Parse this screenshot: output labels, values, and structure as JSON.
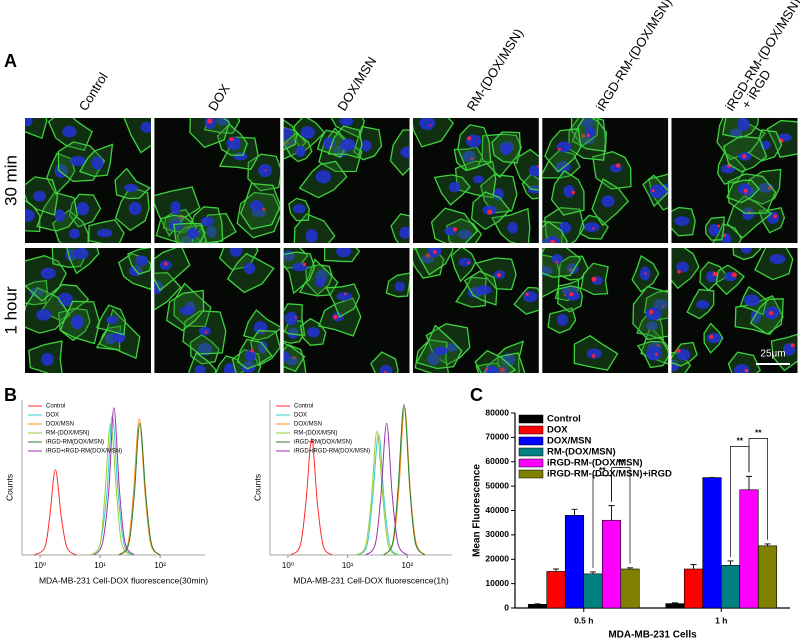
{
  "panel_labels": [
    "A",
    "B",
    "C"
  ],
  "panel_a": {
    "columns": [
      [
        "Control"
      ],
      [
        "DOX"
      ],
      [
        "DOX/MSN"
      ],
      [
        "RM-(DOX/MSN)"
      ],
      [
        "iRGD-RM-(DOX/MSN)"
      ],
      [
        "iRGD-RM-(DOX/MSN)",
        "+ iRGD"
      ]
    ],
    "rows": [
      "30 min",
      "1 hour"
    ],
    "scale_bar": "25μm"
  },
  "chart_data": [
    {
      "type": "line",
      "log_x": true,
      "xlabel": "MDA-MB-231 Cell-DOX fluorescence(30min)",
      "ylabel": "Counts",
      "xlim": [
        0.5,
        560
      ],
      "ylim": [
        0,
        100
      ],
      "xticks": [
        {
          "value": 1,
          "label": "10⁰"
        },
        {
          "value": 10,
          "label": "10¹"
        },
        {
          "value": 100,
          "label": "10²"
        }
      ],
      "legend": "upper left",
      "series": [
        {
          "name": "Control",
          "color": "#ff2a2a",
          "x": [
            0.8,
            1.2,
            1.45,
            1.8,
            2.25,
            2.8,
            4
          ],
          "values": [
            0,
            5,
            25,
            55,
            25,
            5,
            0
          ]
        },
        {
          "name": "DOX",
          "color": "#33cccc",
          "x": [
            7,
            10,
            13,
            16,
            20,
            25,
            35
          ],
          "values": [
            0,
            7,
            40,
            90,
            40,
            7,
            0
          ]
        },
        {
          "name": "DOX/MSN",
          "color": "#ff8c1a",
          "x": [
            20,
            29,
            36,
            45,
            56,
            70,
            100
          ],
          "values": [
            0,
            7,
            40,
            88,
            40,
            7,
            0
          ]
        },
        {
          "name": "RM-(DOX/MSN)",
          "color": "#99cc33",
          "x": [
            7,
            10,
            12,
            15,
            19,
            23,
            33
          ],
          "values": [
            0,
            7,
            38,
            85,
            38,
            7,
            0
          ]
        },
        {
          "name": "iRGD-RM(DOX/MSN)",
          "color": "#2e7d32",
          "x": [
            21,
            30,
            37,
            46,
            58,
            72,
            100
          ],
          "values": [
            0,
            7,
            38,
            85,
            38,
            7,
            0
          ]
        },
        {
          "name": "iRGD+iRGD-RM(DOX/MSN)",
          "color": "#9933aa",
          "x": [
            8,
            11,
            14,
            17,
            21,
            26,
            37
          ],
          "values": [
            0,
            8,
            42,
            95,
            42,
            8,
            0
          ]
        }
      ]
    },
    {
      "type": "line",
      "log_x": true,
      "xlabel": "MDA-MB-231 Cell-DOX fluorescence(1h)",
      "ylabel": "Counts",
      "xlim": [
        0.5,
        560
      ],
      "ylim": [
        0,
        100
      ],
      "xticks": [
        {
          "value": 1,
          "label": "10⁰"
        },
        {
          "value": 10,
          "label": "10¹"
        },
        {
          "value": 100,
          "label": "10²"
        }
      ],
      "legend": "upper left",
      "series": [
        {
          "name": "Control",
          "color": "#ff2a2a",
          "x": [
            1.1,
            1.6,
            2,
            2.5,
            3.1,
            3.9,
            5.5
          ],
          "values": [
            0,
            6,
            34,
            75,
            34,
            6,
            0
          ]
        },
        {
          "name": "DOX",
          "color": "#33cccc",
          "x": [
            15,
            21,
            26,
            33,
            41,
            51,
            72
          ],
          "values": [
            0,
            6,
            35,
            78,
            35,
            6,
            0
          ]
        },
        {
          "name": "DOX/MSN",
          "color": "#ff8c1a",
          "x": [
            40,
            58,
            72,
            90,
            112,
            140,
            200
          ],
          "values": [
            0,
            8,
            42,
            95,
            42,
            8,
            0
          ]
        },
        {
          "name": "RM-(DOX/MSN)",
          "color": "#99cc33",
          "x": [
            14,
            20,
            25,
            31,
            39,
            48,
            68
          ],
          "values": [
            0,
            6,
            36,
            80,
            36,
            6,
            0
          ]
        },
        {
          "name": "iRGD-RM(DOX/MSN)",
          "color": "#2e7d32",
          "x": [
            40,
            57,
            70,
            88,
            110,
            136,
            195
          ],
          "values": [
            0,
            8,
            43,
            97,
            43,
            8,
            0
          ]
        },
        {
          "name": "iRGD+iRGD-RM(DOX/MSN)",
          "color": "#9933aa",
          "x": [
            20,
            29,
            36,
            45,
            56,
            70,
            100
          ],
          "values": [
            0,
            7,
            38,
            85,
            38,
            7,
            0
          ]
        }
      ]
    },
    {
      "type": "bar",
      "xlabel": "MDA-MB-231 Cells",
      "ylabel": "Mean Fluorescence",
      "categories": [
        "0.5 h",
        "1 h"
      ],
      "ylim": [
        0,
        80000
      ],
      "yticks": [
        0,
        10000,
        20000,
        30000,
        40000,
        50000,
        60000,
        70000,
        80000
      ],
      "legend": "upper left",
      "series": [
        {
          "name": "Control",
          "color": "#000000",
          "values": [
            1500,
            1800
          ],
          "errors": [
            200,
            300
          ]
        },
        {
          "name": "DOX",
          "color": "#ff0000",
          "values": [
            15000,
            16000
          ],
          "errors": [
            1000,
            1800
          ]
        },
        {
          "name": "DOX/MSN",
          "color": "#0000ff",
          "values": [
            38000,
            53500
          ],
          "errors": [
            2500,
            0
          ]
        },
        {
          "name": "RM-(DOX/MSN)",
          "color": "#008080",
          "values": [
            14000,
            17500
          ],
          "errors": [
            800,
            1800
          ]
        },
        {
          "name": "iRGD-RM-(DOX/MSN)",
          "color": "#ff00ff",
          "values": [
            36000,
            48500
          ],
          "errors": [
            6000,
            5500
          ]
        },
        {
          "name": "iRGD-RM-(DOX/MSN)+iRGD",
          "color": "#808000",
          "values": [
            16000,
            25500
          ],
          "errors": [
            500,
            800
          ]
        }
      ],
      "annotations": [
        "**",
        "**",
        "**",
        "**"
      ]
    }
  ]
}
